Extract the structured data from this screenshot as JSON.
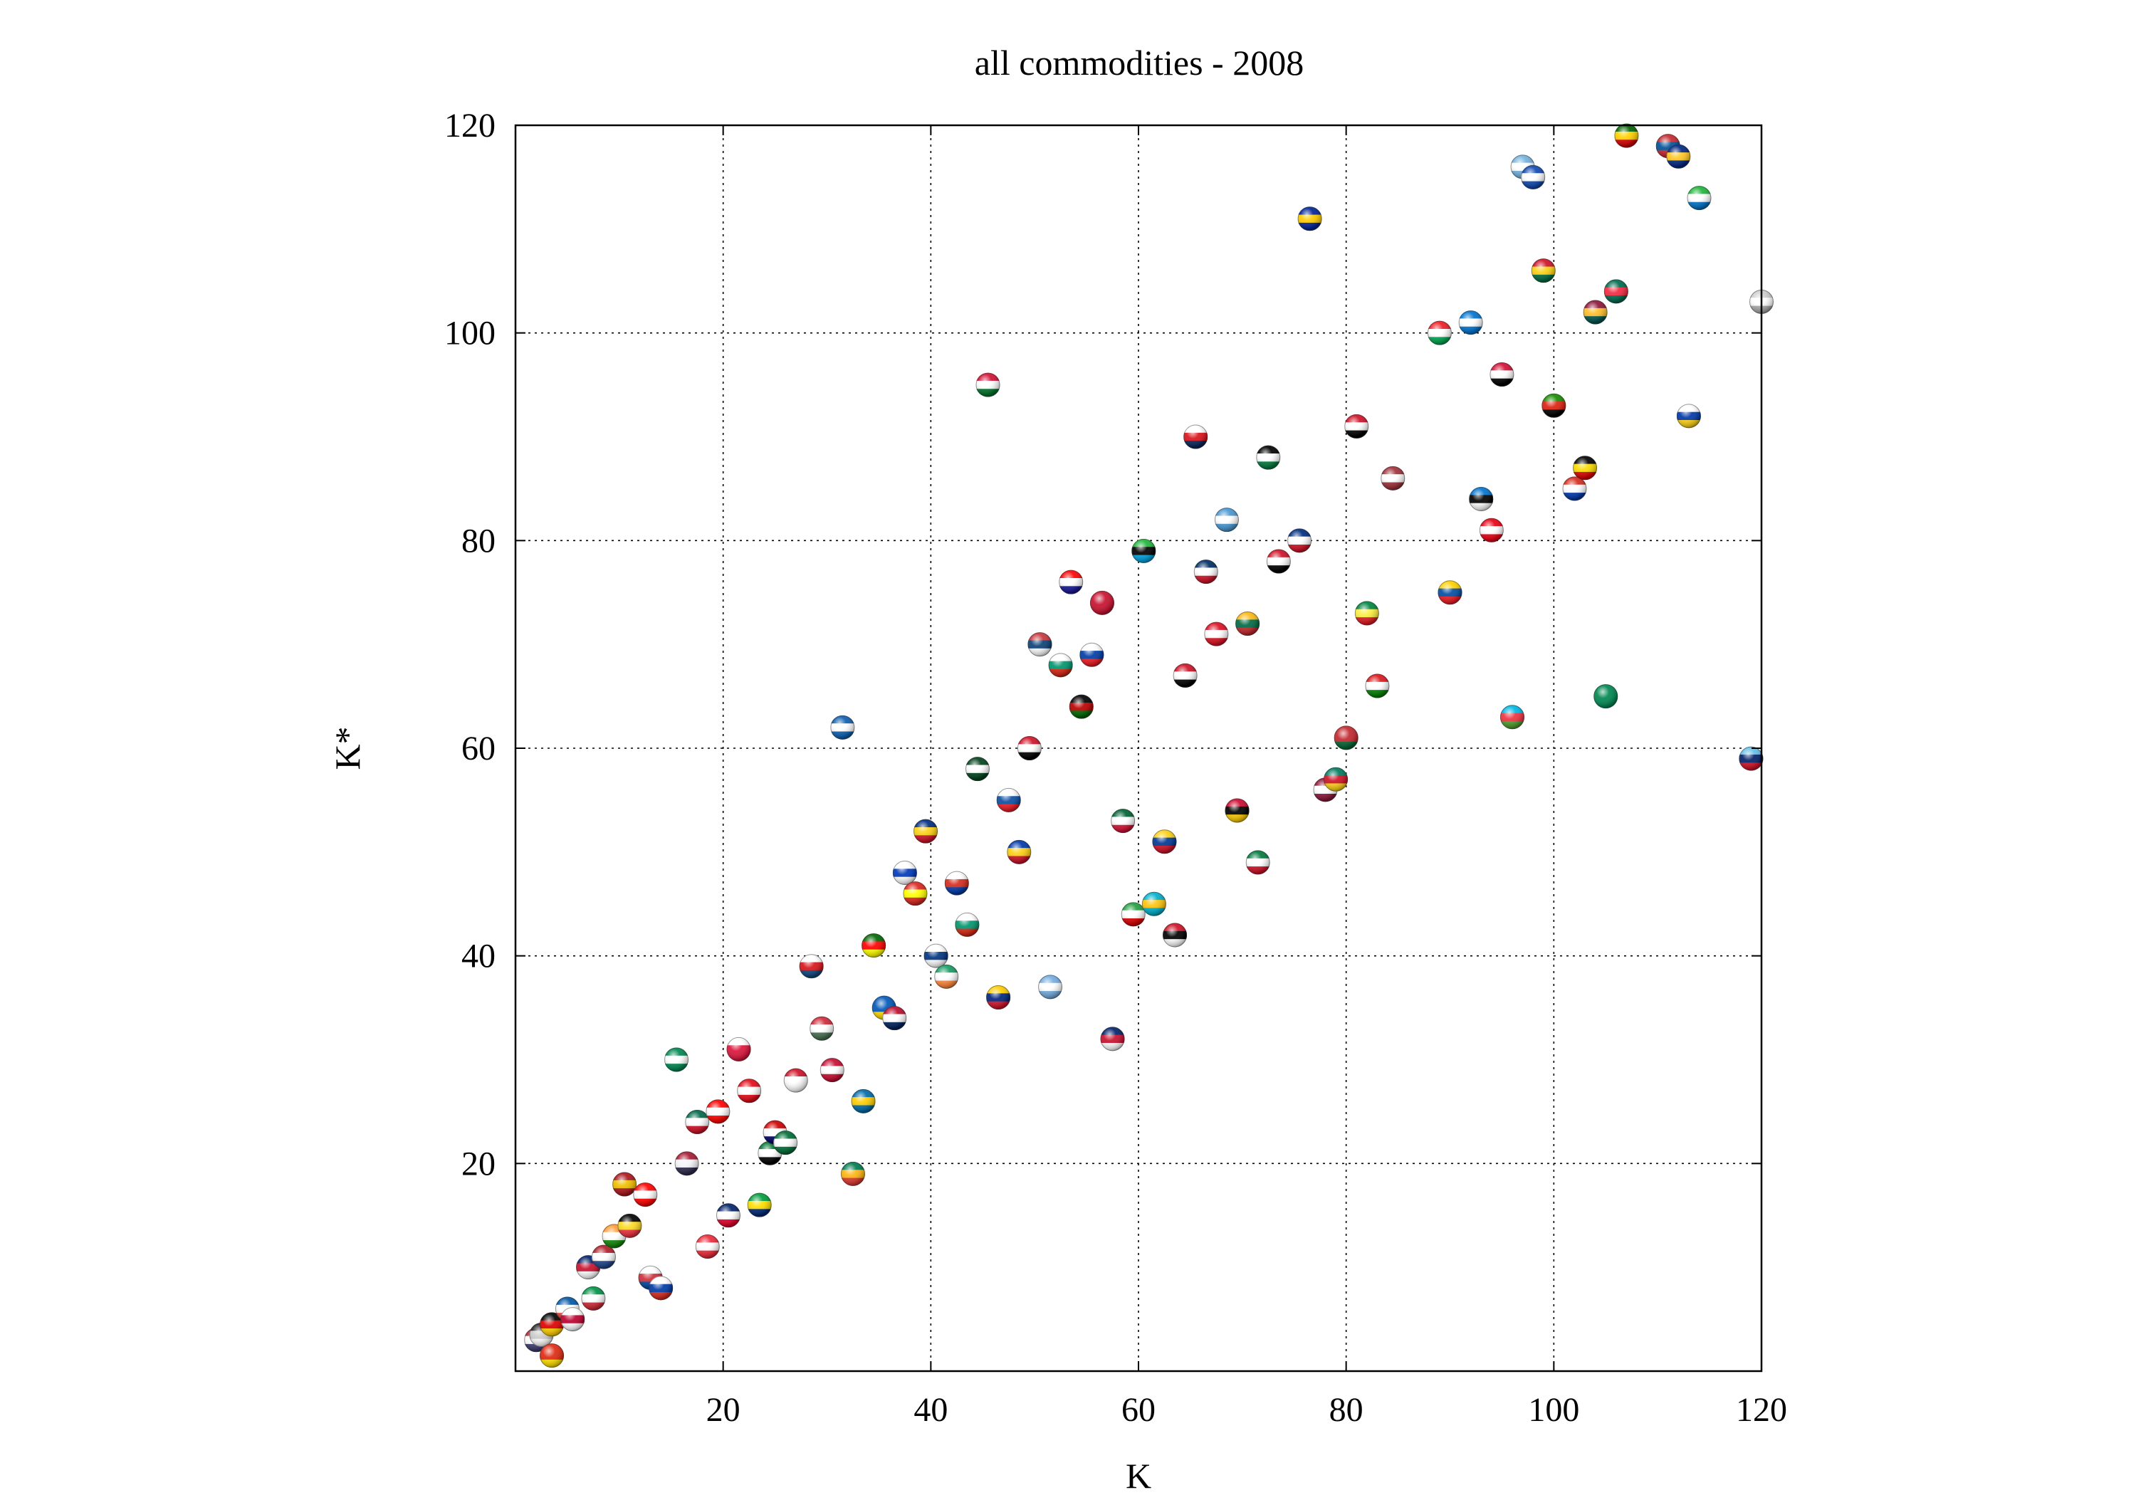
{
  "chart_data": {
    "type": "scatter",
    "title": "all commodities - 2008",
    "xlabel": "K",
    "ylabel": "K*",
    "xlim": [
      0,
      120
    ],
    "ylim": [
      0,
      120
    ],
    "xticks": [
      "20",
      "40",
      "60",
      "80",
      "100",
      "120"
    ],
    "yticks": [
      "20",
      "40",
      "60",
      "80",
      "100",
      "120"
    ],
    "grid": true,
    "marker": "country-flag-sphere",
    "points": [
      {
        "x": 2,
        "y": 3,
        "flag": "united-states",
        "colors": [
          "#b22234",
          "#ffffff",
          "#3c3b6e"
        ]
      },
      {
        "x": 2.5,
        "y": 3.5,
        "flag": "generic",
        "colors": [
          "#222222",
          "#cccccc",
          "#ffffff"
        ]
      },
      {
        "x": 3.5,
        "y": 4.5,
        "flag": "germany",
        "colors": [
          "#000000",
          "#dd0000",
          "#ffce00"
        ]
      },
      {
        "x": 3.5,
        "y": 1.5,
        "flag": "china",
        "colors": [
          "#de2910",
          "#de2910",
          "#ffde00"
        ]
      },
      {
        "x": 5,
        "y": 6,
        "flag": "france",
        "colors": [
          "#0055a4",
          "#ffffff",
          "#ef4135"
        ]
      },
      {
        "x": 5.5,
        "y": 5,
        "flag": "japan",
        "colors": [
          "#ffffff",
          "#bc002d",
          "#ffffff"
        ]
      },
      {
        "x": 7,
        "y": 10,
        "flag": "united-kingdom",
        "colors": [
          "#012169",
          "#c8102e",
          "#ffffff"
        ]
      },
      {
        "x": 7.5,
        "y": 7,
        "flag": "italy",
        "colors": [
          "#009246",
          "#ffffff",
          "#ce2b37"
        ]
      },
      {
        "x": 8.5,
        "y": 11,
        "flag": "netherlands",
        "colors": [
          "#ae1c28",
          "#ffffff",
          "#21468b"
        ]
      },
      {
        "x": 9.5,
        "y": 13,
        "flag": "india",
        "colors": [
          "#ff9933",
          "#ffffff",
          "#138808"
        ]
      },
      {
        "x": 10.5,
        "y": 18,
        "flag": "spain",
        "colors": [
          "#aa151b",
          "#f1bf00",
          "#aa151b"
        ]
      },
      {
        "x": 11,
        "y": 14,
        "flag": "belgium",
        "colors": [
          "#000000",
          "#fdda24",
          "#ef3340"
        ]
      },
      {
        "x": 12.5,
        "y": 17,
        "flag": "canada",
        "colors": [
          "#ff0000",
          "#ffffff",
          "#ff0000"
        ]
      },
      {
        "x": 13,
        "y": 9,
        "flag": "korea",
        "colors": [
          "#ffffff",
          "#cd2e3a",
          "#0047a0"
        ]
      },
      {
        "x": 14,
        "y": 8,
        "flag": "russia",
        "colors": [
          "#ffffff",
          "#0039a6",
          "#d52b1e"
        ]
      },
      {
        "x": 15.5,
        "y": 30,
        "flag": "nigeria",
        "colors": [
          "#008751",
          "#ffffff",
          "#008751"
        ]
      },
      {
        "x": 16.5,
        "y": 20,
        "flag": "thailand",
        "colors": [
          "#a51931",
          "#f4f5f8",
          "#2d2a4a"
        ]
      },
      {
        "x": 17.5,
        "y": 24,
        "flag": "mexico",
        "colors": [
          "#006847",
          "#ffffff",
          "#ce1126"
        ]
      },
      {
        "x": 18.5,
        "y": 12,
        "flag": "austria",
        "colors": [
          "#ed2939",
          "#ffffff",
          "#ed2939"
        ]
      },
      {
        "x": 19.5,
        "y": 25,
        "flag": "switzerland",
        "colors": [
          "#ff0000",
          "#ffffff",
          "#ff0000"
        ]
      },
      {
        "x": 20.5,
        "y": 15,
        "flag": "australia",
        "colors": [
          "#012169",
          "#ffffff",
          "#e4002b"
        ]
      },
      {
        "x": 21.5,
        "y": 31,
        "flag": "poland",
        "colors": [
          "#ffffff",
          "#dc143c",
          "#dc143c"
        ]
      },
      {
        "x": 22.5,
        "y": 27,
        "flag": "turkey",
        "colors": [
          "#e30a17",
          "#ffffff",
          "#e30a17"
        ]
      },
      {
        "x": 23.5,
        "y": 16,
        "flag": "brazil",
        "colors": [
          "#009c3b",
          "#ffdf00",
          "#002776"
        ]
      },
      {
        "x": 24.5,
        "y": 21,
        "flag": "united-arab-emirates",
        "colors": [
          "#00732f",
          "#ffffff",
          "#000000"
        ]
      },
      {
        "x": 25,
        "y": 23,
        "flag": "malaysia",
        "colors": [
          "#cc0001",
          "#ffffff",
          "#010066"
        ]
      },
      {
        "x": 26,
        "y": 22,
        "flag": "saudi-arabia",
        "colors": [
          "#006c35",
          "#ffffff",
          "#006c35"
        ]
      },
      {
        "x": 27,
        "y": 28,
        "flag": "indonesia",
        "colors": [
          "#ce1126",
          "#ffffff",
          "#ffffff"
        ]
      },
      {
        "x": 28.5,
        "y": 39,
        "flag": "czech-republic",
        "colors": [
          "#ffffff",
          "#d7141a",
          "#11457e"
        ]
      },
      {
        "x": 29.5,
        "y": 33,
        "flag": "hungary",
        "colors": [
          "#ce2939",
          "#ffffff",
          "#477050"
        ]
      },
      {
        "x": 30.5,
        "y": 29,
        "flag": "denmark",
        "colors": [
          "#c60c30",
          "#ffffff",
          "#c60c30"
        ]
      },
      {
        "x": 31.5,
        "y": 62,
        "flag": "greece",
        "colors": [
          "#0d5eaf",
          "#ffffff",
          "#0d5eaf"
        ]
      },
      {
        "x": 32.5,
        "y": 19,
        "flag": "south-africa",
        "colors": [
          "#007a4d",
          "#ffb612",
          "#de3831"
        ]
      },
      {
        "x": 33.5,
        "y": 26,
        "flag": "sweden",
        "colors": [
          "#006aa7",
          "#fecc00",
          "#006aa7"
        ]
      },
      {
        "x": 34.5,
        "y": 41,
        "flag": "portugal",
        "colors": [
          "#006600",
          "#ff0000",
          "#ffff00"
        ]
      },
      {
        "x": 35.5,
        "y": 35,
        "flag": "ukraine",
        "colors": [
          "#0057b7",
          "#0057b7",
          "#ffd700"
        ]
      },
      {
        "x": 36.5,
        "y": 34,
        "flag": "norway",
        "colors": [
          "#ba0c2f",
          "#ffffff",
          "#00205b"
        ]
      },
      {
        "x": 37.5,
        "y": 48,
        "flag": "israel",
        "colors": [
          "#ffffff",
          "#0038b8",
          "#ffffff"
        ]
      },
      {
        "x": 38.5,
        "y": 46,
        "flag": "vietnam",
        "colors": [
          "#da251d",
          "#ffff00",
          "#da251d"
        ]
      },
      {
        "x": 39.5,
        "y": 52,
        "flag": "romania",
        "colors": [
          "#002b7f",
          "#fcd116",
          "#ce1126"
        ]
      },
      {
        "x": 40.5,
        "y": 40,
        "flag": "finland",
        "colors": [
          "#ffffff",
          "#003580",
          "#ffffff"
        ]
      },
      {
        "x": 41.5,
        "y": 38,
        "flag": "ireland",
        "colors": [
          "#169b62",
          "#ffffff",
          "#ff883e"
        ]
      },
      {
        "x": 42.5,
        "y": 47,
        "flag": "chile",
        "colors": [
          "#ffffff",
          "#d52b1e",
          "#0039a6"
        ]
      },
      {
        "x": 43.5,
        "y": 43,
        "flag": "bulgaria-like",
        "colors": [
          "#ffffff",
          "#00966e",
          "#d62612"
        ]
      },
      {
        "x": 44.5,
        "y": 58,
        "flag": "pakistan",
        "colors": [
          "#01411c",
          "#ffffff",
          "#01411c"
        ]
      },
      {
        "x": 45.5,
        "y": 95,
        "flag": "sudan",
        "colors": [
          "#d21034",
          "#ffffff",
          "#007229"
        ]
      },
      {
        "x": 46.5,
        "y": 36,
        "flag": "venezuela",
        "colors": [
          "#ffcc00",
          "#00247d",
          "#cf142b"
        ]
      },
      {
        "x": 47.5,
        "y": 55,
        "flag": "slovakia",
        "colors": [
          "#ffffff",
          "#0b4ea2",
          "#ee1c25"
        ]
      },
      {
        "x": 48.5,
        "y": 50,
        "flag": "philippines",
        "colors": [
          "#0038a8",
          "#fcd116",
          "#ce1126"
        ]
      },
      {
        "x": 49.5,
        "y": 60,
        "flag": "egypt",
        "colors": [
          "#ce1126",
          "#ffffff",
          "#000000"
        ]
      },
      {
        "x": 50.5,
        "y": 70,
        "flag": "serbia",
        "colors": [
          "#c6363c",
          "#0c4076",
          "#ffffff"
        ]
      },
      {
        "x": 51.5,
        "y": 37,
        "flag": "argentina",
        "colors": [
          "#74acdf",
          "#ffffff",
          "#74acdf"
        ]
      },
      {
        "x": 52.5,
        "y": 68,
        "flag": "bulgaria",
        "colors": [
          "#ffffff",
          "#00966e",
          "#d62612"
        ]
      },
      {
        "x": 53.5,
        "y": 76,
        "flag": "croatia",
        "colors": [
          "#ff0000",
          "#ffffff",
          "#171796"
        ]
      },
      {
        "x": 54.5,
        "y": 64,
        "flag": "kenya",
        "colors": [
          "#000000",
          "#bb0000",
          "#006600"
        ]
      },
      {
        "x": 55.5,
        "y": 69,
        "flag": "slovenia",
        "colors": [
          "#ffffff",
          "#003da5",
          "#ed1c24"
        ]
      },
      {
        "x": 56.5,
        "y": 74,
        "flag": "tunisia-like",
        "colors": [
          "#c8102e",
          "#c8102e",
          "#c8102e"
        ]
      },
      {
        "x": 57.5,
        "y": 32,
        "flag": "new-zealand",
        "colors": [
          "#012169",
          "#c8102e",
          "#ffffff"
        ]
      },
      {
        "x": 58.5,
        "y": 53,
        "flag": "algeria",
        "colors": [
          "#006233",
          "#ffffff",
          "#d21034"
        ]
      },
      {
        "x": 59.5,
        "y": 44,
        "flag": "iran",
        "colors": [
          "#239f40",
          "#ffffff",
          "#da0000"
        ]
      },
      {
        "x": 60.5,
        "y": 79,
        "flag": "tanzania",
        "colors": [
          "#1eb53a",
          "#000000",
          "#00a3dd"
        ]
      },
      {
        "x": 61.5,
        "y": 45,
        "flag": "kazakhstan",
        "colors": [
          "#00afca",
          "#fec50c",
          "#00afca"
        ]
      },
      {
        "x": 62.5,
        "y": 51,
        "flag": "colombia",
        "colors": [
          "#fcd116",
          "#003893",
          "#ce1126"
        ]
      },
      {
        "x": 63.5,
        "y": 42,
        "flag": "trinidad-and-tobago",
        "colors": [
          "#ce1126",
          "#000000",
          "#ffffff"
        ]
      },
      {
        "x": 64.5,
        "y": 67,
        "flag": "iraq",
        "colors": [
          "#ce1126",
          "#ffffff",
          "#000000"
        ]
      },
      {
        "x": 65.5,
        "y": 90,
        "flag": "panama",
        "colors": [
          "#ffffff",
          "#da121a",
          "#072357"
        ]
      },
      {
        "x": 66.5,
        "y": 77,
        "flag": "dominican-republic",
        "colors": [
          "#002d62",
          "#ffffff",
          "#ce1126"
        ]
      },
      {
        "x": 67.5,
        "y": 71,
        "flag": "peru",
        "colors": [
          "#d91023",
          "#ffffff",
          "#d91023"
        ]
      },
      {
        "x": 68.5,
        "y": 82,
        "flag": "guatemala",
        "colors": [
          "#4997d0",
          "#ffffff",
          "#4997d0"
        ]
      },
      {
        "x": 69.5,
        "y": 54,
        "flag": "angola",
        "colors": [
          "#cc092f",
          "#000000",
          "#ffcb00"
        ]
      },
      {
        "x": 70.5,
        "y": 72,
        "flag": "lithuania",
        "colors": [
          "#fdb913",
          "#006a44",
          "#c1272d"
        ]
      },
      {
        "x": 71.5,
        "y": 49,
        "flag": "kuwait",
        "colors": [
          "#007a3d",
          "#ffffff",
          "#ce1126"
        ]
      },
      {
        "x": 72.5,
        "y": 88,
        "flag": "jordan",
        "colors": [
          "#000000",
          "#ffffff",
          "#007a3d"
        ]
      },
      {
        "x": 73.5,
        "y": 78,
        "flag": "syria",
        "colors": [
          "#ce1126",
          "#ffffff",
          "#000000"
        ]
      },
      {
        "x": 75.5,
        "y": 80,
        "flag": "costa-rica",
        "colors": [
          "#002b7f",
          "#ffffff",
          "#ce1126"
        ]
      },
      {
        "x": 76.5,
        "y": 111,
        "flag": "bosnia-and-herzegovina",
        "colors": [
          "#002395",
          "#fecb00",
          "#002395"
        ]
      },
      {
        "x": 78,
        "y": 56,
        "flag": "qatar",
        "colors": [
          "#8a1538",
          "#ffffff",
          "#8a1538"
        ]
      },
      {
        "x": 79,
        "y": 57,
        "flag": "cameroon",
        "colors": [
          "#007a5e",
          "#ce1126",
          "#fcd116"
        ]
      },
      {
        "x": 80,
        "y": 61,
        "flag": "morocco",
        "colors": [
          "#c1272d",
          "#c1272d",
          "#006233"
        ]
      },
      {
        "x": 81,
        "y": 91,
        "flag": "yemen",
        "colors": [
          "#ce1126",
          "#ffffff",
          "#000000"
        ]
      },
      {
        "x": 82,
        "y": 73,
        "flag": "senegal",
        "colors": [
          "#00853f",
          "#fdef42",
          "#e31b23"
        ]
      },
      {
        "x": 83,
        "y": 66,
        "flag": "oman",
        "colors": [
          "#db161b",
          "#ffffff",
          "#008000"
        ]
      },
      {
        "x": 84.5,
        "y": 86,
        "flag": "latvia",
        "colors": [
          "#9e3039",
          "#ffffff",
          "#9e3039"
        ]
      },
      {
        "x": 89,
        "y": 100,
        "flag": "lebanon",
        "colors": [
          "#ed1c24",
          "#ffffff",
          "#00a651"
        ]
      },
      {
        "x": 90,
        "y": 75,
        "flag": "ecuador",
        "colors": [
          "#ffd100",
          "#034ea2",
          "#ed1c24"
        ]
      },
      {
        "x": 92,
        "y": 101,
        "flag": "honduras",
        "colors": [
          "#0073cf",
          "#ffffff",
          "#0073cf"
        ]
      },
      {
        "x": 93,
        "y": 84,
        "flag": "estonia",
        "colors": [
          "#0072ce",
          "#000000",
          "#ffffff"
        ]
      },
      {
        "x": 94,
        "y": 81,
        "flag": "tunisia",
        "colors": [
          "#e70013",
          "#ffffff",
          "#e70013"
        ]
      },
      {
        "x": 95,
        "y": 96,
        "flag": "sudan-2",
        "colors": [
          "#d21034",
          "#ffffff",
          "#000000"
        ]
      },
      {
        "x": 96,
        "y": 63,
        "flag": "azerbaijan",
        "colors": [
          "#00b5e2",
          "#ef3340",
          "#509e2f"
        ]
      },
      {
        "x": 97,
        "y": 116,
        "flag": "micronesia-like",
        "colors": [
          "#75b2dd",
          "#ffffff",
          "#75b2dd"
        ]
      },
      {
        "x": 98,
        "y": 115,
        "flag": "el-salvador",
        "colors": [
          "#0f47af",
          "#ffffff",
          "#0f47af"
        ]
      },
      {
        "x": 99,
        "y": 106,
        "flag": "ghana",
        "colors": [
          "#ce1126",
          "#fcd116",
          "#006b3f"
        ]
      },
      {
        "x": 100,
        "y": 93,
        "flag": "zambia",
        "colors": [
          "#198a00",
          "#de2010",
          "#000000"
        ]
      },
      {
        "x": 102,
        "y": 85,
        "flag": "paraguay",
        "colors": [
          "#d52b1e",
          "#ffffff",
          "#0038a8"
        ]
      },
      {
        "x": 103,
        "y": 87,
        "flag": "uganda",
        "colors": [
          "#000000",
          "#fcdc04",
          "#d90000"
        ]
      },
      {
        "x": 104,
        "y": 102,
        "flag": "sri-lanka",
        "colors": [
          "#8d153a",
          "#ffbe29",
          "#00534e"
        ]
      },
      {
        "x": 105,
        "y": 65,
        "flag": "nigeria-2",
        "colors": [
          "#008751",
          "#008751",
          "#008751"
        ]
      },
      {
        "x": 106,
        "y": 104,
        "flag": "bangladesh",
        "colors": [
          "#006a4e",
          "#f42a41",
          "#006a4e"
        ]
      },
      {
        "x": 107,
        "y": 119,
        "flag": "zimbabwe",
        "colors": [
          "#006400",
          "#ffd200",
          "#d40000"
        ]
      },
      {
        "x": 111,
        "y": 118,
        "flag": "mongolia",
        "colors": [
          "#c4272f",
          "#015197",
          "#c4272f"
        ]
      },
      {
        "x": 112,
        "y": 117,
        "flag": "barbados",
        "colors": [
          "#00267f",
          "#ffc726",
          "#00267f"
        ]
      },
      {
        "x": 113,
        "y": 92,
        "flag": "uruguay",
        "colors": [
          "#ffffff",
          "#0038a8",
          "#fcd116"
        ]
      },
      {
        "x": 114,
        "y": 113,
        "flag": "sierra-leone",
        "colors": [
          "#1eb53a",
          "#ffffff",
          "#0072c6"
        ]
      },
      {
        "x": 119,
        "y": 59,
        "flag": "fiji",
        "colors": [
          "#68bfe5",
          "#012169",
          "#ce1126"
        ]
      },
      {
        "x": 120,
        "y": 103,
        "flag": "generic-2",
        "colors": [
          "#cccccc",
          "#ffffff",
          "#aaaaaa"
        ]
      }
    ]
  }
}
